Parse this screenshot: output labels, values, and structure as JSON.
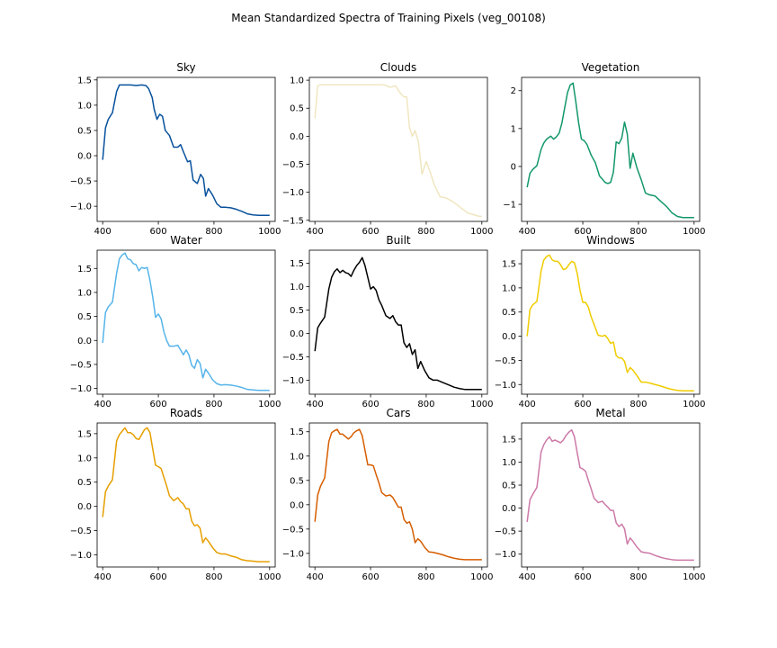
{
  "figure": {
    "title": "Mean Standardized Spectra of Training Pixels (veg_00108)"
  },
  "chart_data": [
    {
      "type": "line",
      "title": "Sky",
      "color": "#08519c",
      "xlim": [
        380,
        1020
      ],
      "ylim": [
        -1.3,
        1.55
      ],
      "xticks": [
        400,
        600,
        800,
        1000
      ],
      "yticks": [
        -1.0,
        -0.5,
        0.0,
        0.5,
        1.0,
        1.5
      ],
      "ytick_labels": [
        "−1.0",
        "−0.5",
        "0.0",
        "0.5",
        "1.0",
        "1.5"
      ],
      "x": [
        400,
        410,
        420,
        435,
        450,
        460,
        480,
        500,
        520,
        540,
        555,
        565,
        578,
        585,
        595,
        605,
        615,
        625,
        640,
        655,
        670,
        680,
        690,
        705,
        715,
        725,
        740,
        752,
        762,
        770,
        780,
        795,
        810,
        825,
        840,
        860,
        880,
        900,
        920,
        940,
        960,
        980,
        1000
      ],
      "y": [
        -0.08,
        0.55,
        0.72,
        0.85,
        1.27,
        1.4,
        1.4,
        1.4,
        1.39,
        1.4,
        1.39,
        1.33,
        1.15,
        0.92,
        0.72,
        0.82,
        0.78,
        0.5,
        0.4,
        0.17,
        0.17,
        0.22,
        0.08,
        -0.12,
        -0.1,
        -0.48,
        -0.55,
        -0.37,
        -0.45,
        -0.8,
        -0.65,
        -0.78,
        -0.95,
        -1.02,
        -1.02,
        -1.03,
        -1.06,
        -1.1,
        -1.15,
        -1.17,
        -1.18,
        -1.18,
        -1.18
      ]
    },
    {
      "type": "line",
      "title": "Clouds",
      "color": "#f0e6c0",
      "xlim": [
        380,
        1020
      ],
      "ylim": [
        -1.52,
        1.05
      ],
      "xticks": [
        400,
        600,
        800,
        1000
      ],
      "yticks": [
        -1.5,
        -1.0,
        -0.5,
        0.0,
        0.5,
        1.0
      ],
      "ytick_labels": [
        "−1.5",
        "−1.0",
        "−0.5",
        "0.0",
        "0.5",
        "1.0"
      ],
      "x": [
        400,
        410,
        420,
        435,
        450,
        480,
        510,
        540,
        570,
        600,
        620,
        640,
        655,
        665,
        675,
        690,
        705,
        720,
        730,
        740,
        750,
        760,
        772,
        785,
        800,
        815,
        830,
        850,
        870,
        890,
        910,
        930,
        950,
        970,
        990,
        1000
      ],
      "y": [
        0.32,
        0.9,
        0.92,
        0.92,
        0.92,
        0.92,
        0.92,
        0.92,
        0.92,
        0.92,
        0.92,
        0.92,
        0.91,
        0.88,
        0.88,
        0.9,
        0.78,
        0.7,
        0.7,
        0.15,
        0.0,
        0.1,
        -0.1,
        -0.68,
        -0.45,
        -0.65,
        -0.88,
        -1.08,
        -1.1,
        -1.15,
        -1.22,
        -1.3,
        -1.37,
        -1.4,
        -1.43,
        -1.43
      ]
    },
    {
      "type": "line",
      "title": "Vegetation",
      "color": "#13976b",
      "xlim": [
        380,
        1020
      ],
      "ylim": [
        -1.45,
        2.35
      ],
      "xticks": [
        400,
        600,
        800,
        1000
      ],
      "yticks": [
        -1,
        0,
        1,
        2
      ],
      "ytick_labels": [
        "−1",
        "0",
        "1",
        "2"
      ],
      "x": [
        400,
        410,
        420,
        435,
        450,
        460,
        470,
        485,
        495,
        505,
        515,
        525,
        535,
        545,
        555,
        565,
        575,
        585,
        595,
        605,
        615,
        630,
        645,
        660,
        672,
        680,
        690,
        700,
        710,
        720,
        730,
        740,
        750,
        760,
        770,
        780,
        795,
        810,
        825,
        840,
        860,
        880,
        900,
        920,
        940,
        960,
        980,
        1000
      ],
      "y": [
        -0.55,
        -0.18,
        -0.08,
        0.02,
        0.45,
        0.62,
        0.72,
        0.8,
        0.72,
        0.78,
        0.88,
        1.15,
        1.55,
        1.95,
        2.15,
        2.2,
        1.7,
        1.15,
        0.72,
        0.68,
        0.58,
        0.3,
        0.1,
        -0.25,
        -0.35,
        -0.42,
        -0.45,
        -0.42,
        -0.15,
        0.65,
        0.6,
        0.75,
        1.17,
        0.85,
        -0.05,
        0.35,
        -0.05,
        -0.35,
        -0.7,
        -0.75,
        -0.78,
        -0.92,
        -1.05,
        -1.22,
        -1.32,
        -1.35,
        -1.35,
        -1.35
      ]
    },
    {
      "type": "line",
      "title": "Water",
      "color": "#56b4e9",
      "xlim": [
        380,
        1020
      ],
      "ylim": [
        -1.12,
        1.88
      ],
      "xticks": [
        400,
        600,
        800,
        1000
      ],
      "yticks": [
        -1.0,
        -0.5,
        0.0,
        0.5,
        1.0,
        1.5
      ],
      "ytick_labels": [
        "−1.0",
        "−0.5",
        "0.0",
        "0.5",
        "1.0",
        "1.5"
      ],
      "x": [
        400,
        410,
        420,
        435,
        450,
        460,
        470,
        480,
        490,
        500,
        510,
        520,
        530,
        540,
        550,
        560,
        570,
        580,
        590,
        600,
        610,
        620,
        630,
        640,
        655,
        670,
        680,
        690,
        700,
        710,
        720,
        730,
        740,
        750,
        760,
        770,
        780,
        795,
        810,
        825,
        840,
        860,
        880,
        900,
        920,
        940,
        960,
        980,
        1000
      ],
      "y": [
        -0.05,
        0.58,
        0.7,
        0.8,
        1.4,
        1.7,
        1.78,
        1.82,
        1.7,
        1.68,
        1.6,
        1.58,
        1.45,
        1.52,
        1.5,
        1.52,
        1.25,
        0.9,
        0.48,
        0.55,
        0.45,
        0.18,
        0.0,
        -0.12,
        -0.12,
        -0.1,
        -0.2,
        -0.3,
        -0.2,
        -0.3,
        -0.52,
        -0.58,
        -0.4,
        -0.48,
        -0.78,
        -0.6,
        -0.68,
        -0.82,
        -0.9,
        -0.93,
        -0.92,
        -0.93,
        -0.95,
        -0.98,
        -1.02,
        -1.03,
        -1.04,
        -1.04,
        -1.04
      ]
    },
    {
      "type": "line",
      "title": "Built",
      "color": "#000000",
      "xlim": [
        380,
        1020
      ],
      "ylim": [
        -1.3,
        1.78
      ],
      "xticks": [
        400,
        600,
        800,
        1000
      ],
      "yticks": [
        -1.0,
        -0.5,
        0.0,
        0.5,
        1.0,
        1.5
      ],
      "ytick_labels": [
        "−1.0",
        "−0.5",
        "0.0",
        "0.5",
        "1.0",
        "1.5"
      ],
      "x": [
        400,
        410,
        420,
        435,
        450,
        460,
        470,
        480,
        490,
        500,
        510,
        520,
        530,
        540,
        550,
        560,
        570,
        580,
        590,
        600,
        610,
        620,
        630,
        640,
        655,
        670,
        680,
        690,
        700,
        710,
        720,
        730,
        740,
        750,
        760,
        770,
        780,
        795,
        810,
        825,
        840,
        860,
        880,
        900,
        920,
        940,
        960,
        980,
        1000
      ],
      "y": [
        -0.38,
        0.12,
        0.22,
        0.35,
        0.95,
        1.2,
        1.32,
        1.38,
        1.3,
        1.35,
        1.3,
        1.28,
        1.22,
        1.35,
        1.45,
        1.52,
        1.62,
        1.45,
        1.2,
        0.95,
        1.0,
        0.92,
        0.72,
        0.6,
        0.38,
        0.32,
        0.38,
        0.25,
        0.18,
        0.18,
        -0.2,
        -0.3,
        -0.22,
        -0.45,
        -0.35,
        -0.75,
        -0.6,
        -0.8,
        -0.95,
        -1.0,
        -1.0,
        -1.05,
        -1.1,
        -1.15,
        -1.18,
        -1.2,
        -1.2,
        -1.2,
        -1.2
      ]
    },
    {
      "type": "line",
      "title": "Windows",
      "color": "#f0cc00",
      "xlim": [
        380,
        1020
      ],
      "ylim": [
        -1.2,
        1.78
      ],
      "xticks": [
        400,
        600,
        800,
        1000
      ],
      "yticks": [
        -1.0,
        -0.5,
        0.0,
        0.5,
        1.0,
        1.5
      ],
      "ytick_labels": [
        "−1.0",
        "−0.5",
        "0.0",
        "0.5",
        "1.0",
        "1.5"
      ],
      "x": [
        400,
        410,
        420,
        435,
        450,
        460,
        470,
        480,
        490,
        500,
        510,
        520,
        530,
        540,
        550,
        560,
        570,
        580,
        590,
        600,
        610,
        620,
        630,
        640,
        655,
        670,
        680,
        690,
        700,
        710,
        720,
        730,
        740,
        750,
        760,
        770,
        780,
        795,
        810,
        825,
        840,
        860,
        880,
        900,
        920,
        940,
        960,
        980,
        1000
      ],
      "y": [
        0.0,
        0.55,
        0.65,
        0.72,
        1.35,
        1.58,
        1.65,
        1.68,
        1.58,
        1.55,
        1.55,
        1.48,
        1.38,
        1.4,
        1.48,
        1.55,
        1.52,
        1.3,
        0.95,
        0.7,
        0.7,
        0.6,
        0.4,
        0.25,
        0.02,
        0.0,
        0.02,
        -0.05,
        -0.15,
        -0.12,
        -0.4,
        -0.45,
        -0.45,
        -0.52,
        -0.75,
        -0.65,
        -0.7,
        -0.82,
        -0.95,
        -0.95,
        -0.97,
        -1.0,
        -1.03,
        -1.07,
        -1.1,
        -1.12,
        -1.13,
        -1.13,
        -1.13
      ]
    },
    {
      "type": "line",
      "title": "Roads",
      "color": "#e69f00",
      "xlim": [
        380,
        1020
      ],
      "ylim": [
        -1.25,
        1.72
      ],
      "xticks": [
        400,
        600,
        800,
        1000
      ],
      "yticks": [
        -1.0,
        -0.5,
        0.0,
        0.5,
        1.0,
        1.5
      ],
      "ytick_labels": [
        "−1.0",
        "−0.5",
        "0.0",
        "0.5",
        "1.0",
        "1.5"
      ],
      "x": [
        400,
        410,
        420,
        435,
        450,
        460,
        470,
        480,
        490,
        500,
        510,
        520,
        530,
        540,
        550,
        560,
        570,
        580,
        590,
        600,
        610,
        620,
        630,
        640,
        655,
        670,
        680,
        690,
        700,
        710,
        720,
        730,
        740,
        750,
        760,
        770,
        780,
        795,
        810,
        825,
        840,
        860,
        880,
        900,
        920,
        940,
        960,
        980,
        1000
      ],
      "y": [
        -0.22,
        0.3,
        0.42,
        0.55,
        1.35,
        1.48,
        1.55,
        1.62,
        1.52,
        1.52,
        1.48,
        1.4,
        1.38,
        1.48,
        1.58,
        1.62,
        1.52,
        1.18,
        0.85,
        0.82,
        0.78,
        0.6,
        0.42,
        0.22,
        0.12,
        0.18,
        0.1,
        0.05,
        -0.05,
        -0.05,
        -0.3,
        -0.4,
        -0.38,
        -0.45,
        -0.75,
        -0.65,
        -0.72,
        -0.85,
        -0.95,
        -0.98,
        -0.98,
        -1.02,
        -1.05,
        -1.1,
        -1.12,
        -1.13,
        -1.14,
        -1.14,
        -1.14
      ]
    },
    {
      "type": "line",
      "title": "Cars",
      "color": "#d55e00",
      "xlim": [
        380,
        1020
      ],
      "ylim": [
        -1.28,
        1.68
      ],
      "xticks": [
        400,
        600,
        800,
        1000
      ],
      "yticks": [
        -1.0,
        -0.5,
        0.0,
        0.5,
        1.0,
        1.5
      ],
      "ytick_labels": [
        "−1.0",
        "−0.5",
        "0.0",
        "0.5",
        "1.0",
        "1.5"
      ],
      "x": [
        400,
        410,
        420,
        435,
        450,
        460,
        470,
        480,
        490,
        500,
        510,
        520,
        530,
        540,
        550,
        560,
        570,
        580,
        590,
        600,
        610,
        620,
        630,
        640,
        655,
        670,
        680,
        690,
        700,
        710,
        720,
        730,
        740,
        750,
        760,
        770,
        780,
        795,
        810,
        825,
        840,
        860,
        880,
        900,
        920,
        940,
        960,
        980,
        1000
      ],
      "y": [
        -0.35,
        0.2,
        0.38,
        0.55,
        1.3,
        1.48,
        1.52,
        1.55,
        1.45,
        1.45,
        1.4,
        1.35,
        1.4,
        1.48,
        1.52,
        1.55,
        1.42,
        1.12,
        0.82,
        0.82,
        0.8,
        0.62,
        0.45,
        0.25,
        0.18,
        0.2,
        0.15,
        0.05,
        -0.05,
        -0.05,
        -0.3,
        -0.38,
        -0.35,
        -0.5,
        -0.78,
        -0.7,
        -0.75,
        -0.88,
        -0.97,
        -0.98,
        -1.0,
        -1.03,
        -1.07,
        -1.1,
        -1.12,
        -1.13,
        -1.13,
        -1.13,
        -1.13
      ]
    },
    {
      "type": "line",
      "title": "Metal",
      "color": "#cc79a7",
      "xlim": [
        380,
        1020
      ],
      "ylim": [
        -1.28,
        1.85
      ],
      "xticks": [
        400,
        600,
        800,
        1000
      ],
      "yticks": [
        -1.0,
        -0.5,
        0.0,
        0.5,
        1.0,
        1.5
      ],
      "ytick_labels": [
        "−1.0",
        "−0.5",
        "0.0",
        "0.5",
        "1.0",
        "1.5"
      ],
      "x": [
        400,
        410,
        420,
        435,
        450,
        460,
        470,
        480,
        490,
        500,
        510,
        520,
        530,
        540,
        550,
        560,
        570,
        580,
        590,
        600,
        610,
        620,
        630,
        640,
        655,
        670,
        680,
        690,
        700,
        710,
        720,
        730,
        740,
        750,
        760,
        770,
        780,
        795,
        810,
        825,
        840,
        860,
        880,
        900,
        920,
        940,
        960,
        980,
        1000
      ],
      "y": [
        -0.3,
        0.18,
        0.3,
        0.45,
        1.22,
        1.38,
        1.48,
        1.55,
        1.45,
        1.48,
        1.45,
        1.42,
        1.48,
        1.58,
        1.65,
        1.7,
        1.55,
        1.2,
        0.88,
        0.85,
        0.8,
        0.6,
        0.42,
        0.22,
        0.12,
        0.15,
        0.08,
        0.02,
        -0.05,
        -0.05,
        -0.32,
        -0.4,
        -0.35,
        -0.45,
        -0.78,
        -0.65,
        -0.72,
        -0.85,
        -0.95,
        -0.97,
        -0.98,
        -1.03,
        -1.07,
        -1.1,
        -1.12,
        -1.13,
        -1.13,
        -1.13,
        -1.13
      ]
    }
  ]
}
